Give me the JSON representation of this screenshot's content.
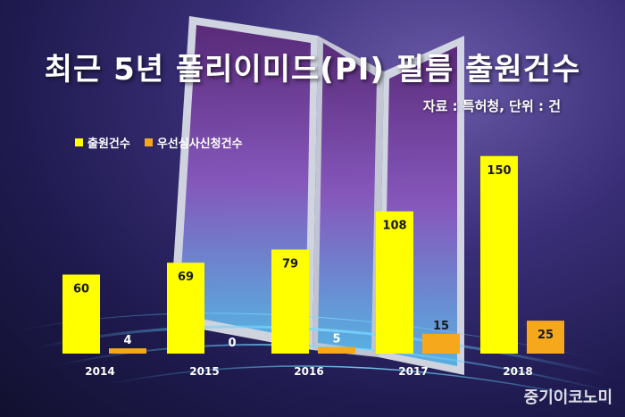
{
  "title": "최근 5년 폴리이미드(PI) 필름 출원건수",
  "source": "자료 : 특허청, 단위 : 건",
  "watermark": "중기이코노미",
  "colors": {
    "series1": "#ffff00",
    "series2": "#f5a81c",
    "label_dark": "#1a1a1a",
    "axis_label": "#ffffff"
  },
  "chart_data": {
    "type": "bar",
    "categories": [
      "2014",
      "2015",
      "2016",
      "2017",
      "2018"
    ],
    "series": [
      {
        "name": "출원건수",
        "values": [
          60,
          69,
          79,
          108,
          150
        ]
      },
      {
        "name": "우선심사신청건수",
        "values": [
          4,
          0,
          5,
          15,
          25
        ]
      }
    ],
    "ylim": [
      0,
      160
    ],
    "legend_position": "top-left",
    "grid": false
  }
}
